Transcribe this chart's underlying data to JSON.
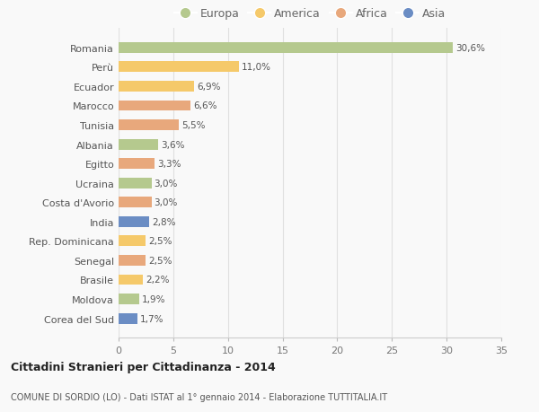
{
  "countries": [
    "Romania",
    "Perù",
    "Ecuador",
    "Marocco",
    "Tunisia",
    "Albania",
    "Egitto",
    "Ucraina",
    "Costa d'Avorio",
    "India",
    "Rep. Dominicana",
    "Senegal",
    "Brasile",
    "Moldova",
    "Corea del Sud"
  ],
  "values": [
    30.6,
    11.0,
    6.9,
    6.6,
    5.5,
    3.6,
    3.3,
    3.0,
    3.0,
    2.8,
    2.5,
    2.5,
    2.2,
    1.9,
    1.7
  ],
  "labels": [
    "30,6%",
    "11,0%",
    "6,9%",
    "6,6%",
    "5,5%",
    "3,6%",
    "3,3%",
    "3,0%",
    "3,0%",
    "2,8%",
    "2,5%",
    "2,5%",
    "2,2%",
    "1,9%",
    "1,7%"
  ],
  "colors": [
    "#b5c98e",
    "#f5c96a",
    "#f5c96a",
    "#e8a87c",
    "#e8a87c",
    "#b5c98e",
    "#e8a87c",
    "#b5c98e",
    "#e8a87c",
    "#6b8dc4",
    "#f5c96a",
    "#e8a87c",
    "#f5c96a",
    "#b5c98e",
    "#6b8dc4"
  ],
  "legend_labels": [
    "Europa",
    "America",
    "Africa",
    "Asia"
  ],
  "legend_colors": [
    "#b5c98e",
    "#f5c96a",
    "#e8a87c",
    "#6b8dc4"
  ],
  "title": "Cittadini Stranieri per Cittadinanza - 2014",
  "subtitle": "COMUNE DI SORDIO (LO) - Dati ISTAT al 1° gennaio 2014 - Elaborazione TUTTITALIA.IT",
  "xlim": [
    0,
    35
  ],
  "xticks": [
    0,
    5,
    10,
    15,
    20,
    25,
    30,
    35
  ],
  "background_color": "#f9f9f9",
  "grid_color": "#e0e0e0"
}
